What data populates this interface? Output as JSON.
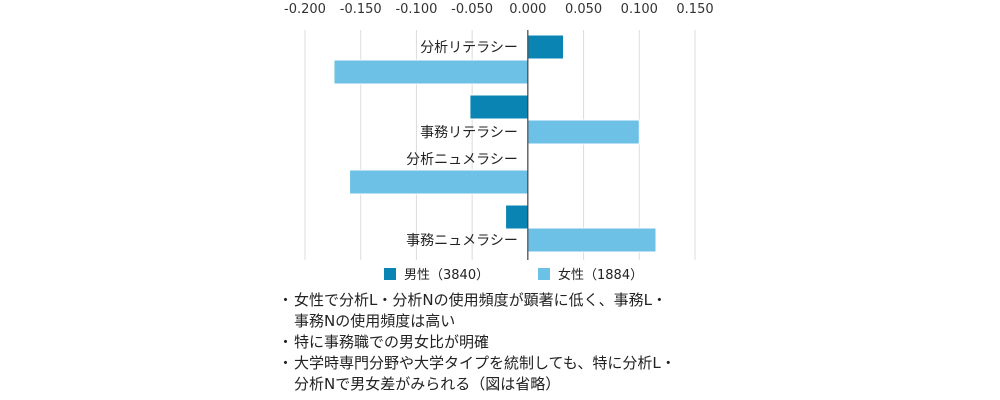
{
  "chart_data": {
    "type": "bar",
    "orientation": "horizontal",
    "title": "",
    "xlim": [
      -0.2,
      0.15
    ],
    "xticks": [
      "-0.200",
      "-0.150",
      "-0.100",
      "-0.050",
      "0.000",
      "0.050",
      "0.100",
      "0.150"
    ],
    "tick_values": [
      -0.2,
      -0.15,
      -0.1,
      -0.05,
      0,
      0.05,
      0.1,
      0.15
    ],
    "categories": [
      "分析リテラシー",
      "事務リテラシー",
      "分析ニュメラシー",
      "事務ニュメラシー"
    ],
    "series": [
      {
        "name": "男性（3840）",
        "color": "#0a85b3",
        "values": [
          0.032,
          -0.052,
          0.0,
          -0.02
        ]
      },
      {
        "name": "女性（1884）",
        "color": "#6ec1e6",
        "values": [
          -0.174,
          0.1,
          -0.16,
          0.115
        ]
      }
    ],
    "grid": true,
    "legend": "bottom"
  },
  "notes": [
    "女性で分析L・分析Nの使用頻度が顕著に低く、事務L・\n事務Nの使用頻度は高い",
    "特に事務職での男女比が明確",
    "大学時専門分野や大学タイプを統制しても、特に分析L・\n分析Nで男女差がみられる（図は省略）"
  ],
  "bullet": "・"
}
